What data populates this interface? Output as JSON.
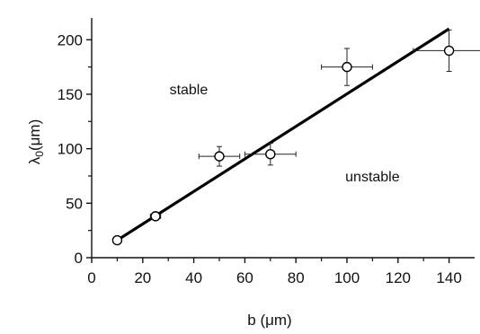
{
  "chart_data": {
    "type": "scatter",
    "xlabel": "b (μm)",
    "ylabel_main": "λ",
    "ylabel_sub": "0",
    "ylabel_unit": "(μm)",
    "xlim": [
      0,
      150
    ],
    "ylim": [
      0,
      220
    ],
    "xticks": [
      0,
      20,
      40,
      60,
      80,
      100,
      120,
      140
    ],
    "yticks": [
      0,
      50,
      100,
      150,
      200
    ],
    "grid": false,
    "points": [
      {
        "x": 10,
        "y": 16,
        "xerr": 1,
        "yerr": 1
      },
      {
        "x": 25,
        "y": 38,
        "xerr": 2,
        "yerr": 3
      },
      {
        "x": 50,
        "y": 93,
        "xerr": 8,
        "yerr": 9
      },
      {
        "x": 70,
        "y": 95,
        "xerr": 10,
        "yerr": 10
      },
      {
        "x": 100,
        "y": 175,
        "xerr": 10,
        "yerr": 17
      },
      {
        "x": 140,
        "y": 190,
        "xerr": 14,
        "yerr": 19
      }
    ],
    "fit_line": {
      "x": [
        10,
        140
      ],
      "y": [
        16,
        210
      ]
    },
    "annotations": [
      {
        "text": "stable",
        "x": 38,
        "y": 150
      },
      {
        "text": "unstable",
        "x": 110,
        "y": 70
      }
    ]
  }
}
